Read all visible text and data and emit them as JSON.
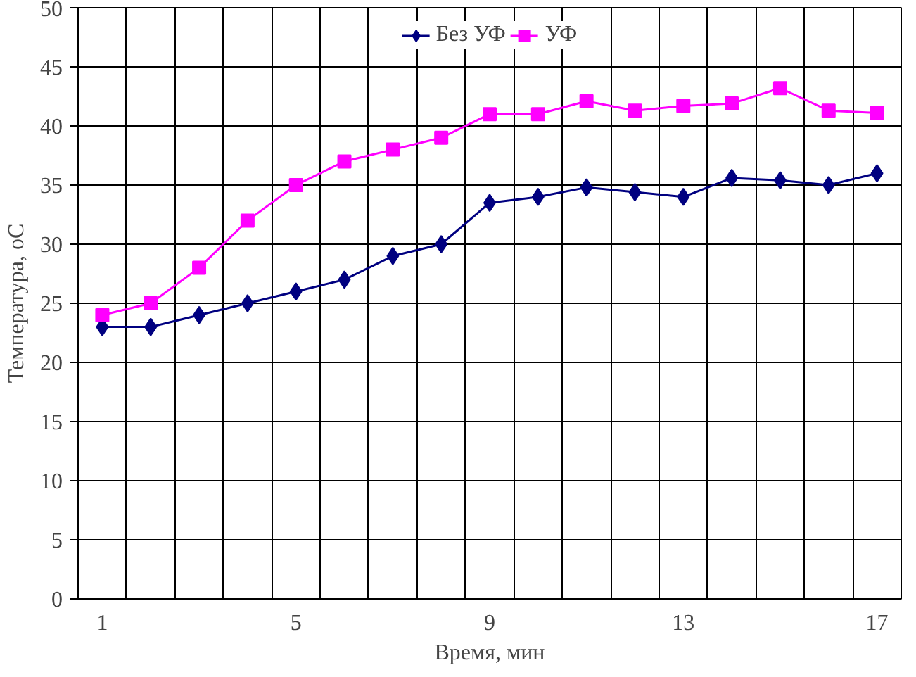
{
  "chart_data": {
    "type": "line",
    "xlabel": "Время, мин",
    "ylabel": "Температура, oC",
    "categories": [
      "1",
      null,
      null,
      null,
      "5",
      null,
      null,
      null,
      "9",
      null,
      null,
      null,
      "13",
      null,
      null,
      null,
      "17"
    ],
    "ylim": [
      0,
      50
    ],
    "yticks": [
      0,
      5,
      10,
      15,
      20,
      25,
      30,
      35,
      40,
      45,
      50
    ],
    "grid": true,
    "legend": "top",
    "series": [
      {
        "name": "Без УФ",
        "color": "#000080",
        "marker": "diamond",
        "values": [
          23,
          23,
          24,
          25,
          26,
          27,
          29,
          30,
          33.5,
          34,
          34.8,
          34.4,
          34,
          35.6,
          35.4,
          35,
          36
        ]
      },
      {
        "name": "УФ",
        "color": "#ff00ff",
        "marker": "square",
        "values": [
          24,
          25,
          28,
          32,
          35,
          37,
          38,
          39,
          41,
          41,
          42.1,
          41.3,
          41.7,
          41.9,
          43.2,
          41.3,
          41.1
        ]
      }
    ]
  }
}
